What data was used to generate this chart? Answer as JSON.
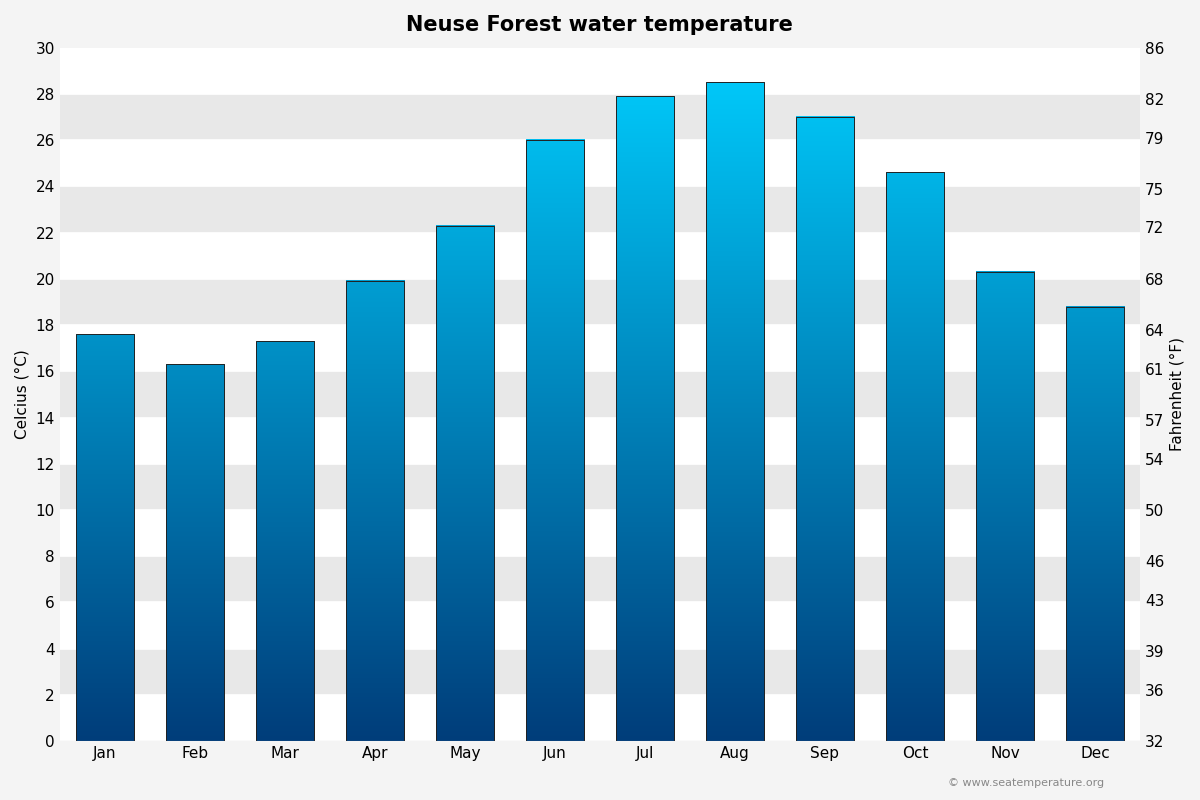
{
  "title": "Neuse Forest water temperature",
  "ylabel_left": "Celcius (°C)",
  "ylabel_right": "Fahrenheit (°F)",
  "months": [
    "Jan",
    "Feb",
    "Mar",
    "Apr",
    "May",
    "Jun",
    "Jul",
    "Aug",
    "Sep",
    "Oct",
    "Nov",
    "Dec"
  ],
  "values_c": [
    17.6,
    16.3,
    17.3,
    19.9,
    22.3,
    26.0,
    27.9,
    28.5,
    27.0,
    24.6,
    20.3,
    18.8
  ],
  "ylim_c": [
    0,
    30
  ],
  "yticks_c": [
    0,
    2,
    4,
    6,
    8,
    10,
    12,
    14,
    16,
    18,
    20,
    22,
    24,
    26,
    28,
    30
  ],
  "yticks_f": [
    32,
    36,
    39,
    43,
    46,
    50,
    54,
    57,
    61,
    64,
    68,
    72,
    75,
    79,
    82,
    86
  ],
  "fig_bg_color": "#f4f4f4",
  "band_colors": [
    "#ffffff",
    "#e8e8e8"
  ],
  "bar_color_top": "#00cfff",
  "bar_color_bottom": "#003d7a",
  "bar_edge_color": "#222222",
  "watermark": "© www.seatemperature.org",
  "title_fontsize": 15,
  "label_fontsize": 11,
  "tick_fontsize": 11
}
